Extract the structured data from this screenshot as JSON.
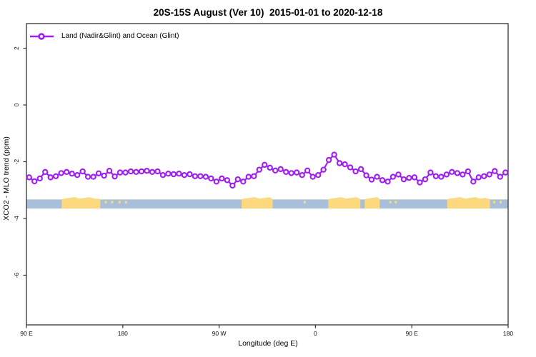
{
  "header": {
    "title": "20S-15S August (Ver 10)  2015-01-01 to 2020-12-18"
  },
  "legend": {
    "label": "Land (Nadir&Glint) and Ocean (Glint)",
    "marker": "open-circle-on-line"
  },
  "axes": {
    "x_title": "Longitude (deg E)",
    "y_title": "XCO2 - MLO trend (ppm)"
  },
  "chart_data": {
    "type": "line",
    "title": "20S-15S August (Ver 10)  2015-01-01 to 2020-12-18",
    "xlabel": "Longitude (deg E)",
    "ylabel": "XCO2 - MLO trend (ppm)",
    "grid": false,
    "legend_position": "top-left",
    "x_axis": {
      "note": "x measured in degrees east of the left edge (90E), wrapping 90E-180-90W-0-90E-180",
      "range_deg": [
        0,
        450
      ],
      "tick_positions_deg": [
        0,
        90,
        180,
        270,
        360,
        450
      ],
      "tick_labels": [
        "90 E",
        "180",
        "90 W",
        "0",
        "90 E",
        "180"
      ]
    },
    "y_axis": {
      "ticks": [
        2,
        0,
        -2,
        -4,
        -6
      ],
      "tick_labels": [
        "2",
        "0",
        "-2",
        "-4",
        "-6"
      ],
      "range": [
        -7.75,
        2.87
      ]
    },
    "series": [
      {
        "name": "Land (Nadir&Glint) and Ocean (Glint)",
        "color": "#a020f0",
        "marker": "open-circle",
        "x_start_deg": 2.5,
        "x_step_deg": 5,
        "values": [
          -2.55,
          -2.69,
          -2.59,
          -2.36,
          -2.55,
          -2.51,
          -2.4,
          -2.36,
          -2.42,
          -2.47,
          -2.34,
          -2.53,
          -2.53,
          -2.41,
          -2.49,
          -2.32,
          -2.52,
          -2.38,
          -2.38,
          -2.34,
          -2.36,
          -2.34,
          -2.32,
          -2.36,
          -2.34,
          -2.47,
          -2.42,
          -2.44,
          -2.42,
          -2.47,
          -2.44,
          -2.51,
          -2.51,
          -2.53,
          -2.59,
          -2.7,
          -2.59,
          -2.65,
          -2.84,
          -2.62,
          -2.7,
          -2.53,
          -2.51,
          -2.28,
          -2.11,
          -2.21,
          -2.31,
          -2.26,
          -2.36,
          -2.4,
          -2.38,
          -2.47,
          -2.31,
          -2.53,
          -2.47,
          -2.28,
          -1.94,
          -1.75,
          -2.05,
          -2.09,
          -2.2,
          -2.34,
          -2.26,
          -2.48,
          -2.63,
          -2.53,
          -2.65,
          -2.7,
          -2.53,
          -2.45,
          -2.62,
          -2.57,
          -2.55,
          -2.73,
          -2.62,
          -2.38,
          -2.51,
          -2.53,
          -2.45,
          -2.36,
          -2.4,
          -2.45,
          -2.34,
          -2.7,
          -2.55,
          -2.51,
          -2.45,
          -2.33,
          -2.53,
          -2.38
        ]
      }
    ],
    "surface_strip": {
      "description": "ocean/land indicator band",
      "ocean_color": "#a9bed9",
      "land_color": "#fcd97e",
      "y_top_value": -3.33,
      "y_bottom_value": -3.65,
      "land_segments_deg": [
        [
          33,
          69
        ],
        [
          201,
          230
        ],
        [
          282,
          312
        ],
        [
          316,
          330
        ],
        [
          393,
          433
        ]
      ],
      "island_marks_deg": [
        74,
        80,
        87,
        93,
        260,
        340,
        345,
        437,
        443
      ]
    },
    "colors": {
      "axis": "#333333",
      "tick_text": "#111111"
    }
  }
}
